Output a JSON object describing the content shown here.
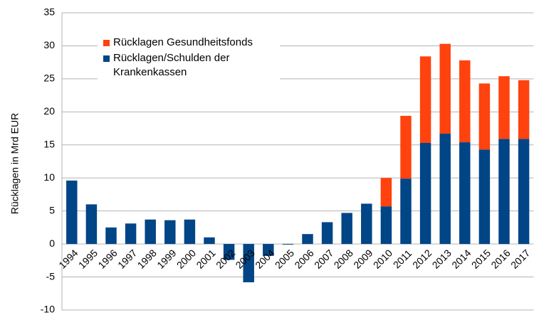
{
  "chart_data": {
    "type": "stacked_bar",
    "y_label": "Rücklagen in Mrd EUR",
    "categories": [
      "1994",
      "1995",
      "1996",
      "1997",
      "1998",
      "1999",
      "2000",
      "2001",
      "2002",
      "2003",
      "2004",
      "2005",
      "2006",
      "2007",
      "2008",
      "2009",
      "2010",
      "2011",
      "2012",
      "2013",
      "2014",
      "2015",
      "2016",
      "2017"
    ],
    "series": [
      {
        "name": "Rücklagen/Schulden der Krankenkassen",
        "color": "#004586",
        "values": [
          9.6,
          6.0,
          2.5,
          3.1,
          3.7,
          3.6,
          3.7,
          1.0,
          -2.4,
          -5.8,
          -1.8,
          -0.1,
          1.5,
          3.3,
          4.7,
          6.1,
          5.7,
          9.9,
          15.3,
          16.7,
          15.4,
          14.3,
          15.9,
          15.9
        ]
      },
      {
        "name": "Rücklagen Gesundheitsfonds",
        "color": "#ff420e",
        "values": [
          null,
          null,
          null,
          null,
          null,
          null,
          null,
          null,
          null,
          null,
          null,
          null,
          null,
          null,
          null,
          null,
          4.3,
          9.5,
          13.1,
          13.6,
          12.4,
          10.0,
          9.5,
          8.9
        ]
      }
    ],
    "ylim": [
      -10,
      35
    ],
    "yticks": [
      -10,
      -5,
      0,
      5,
      10,
      15,
      20,
      25,
      30,
      35
    ],
    "grid": true
  }
}
